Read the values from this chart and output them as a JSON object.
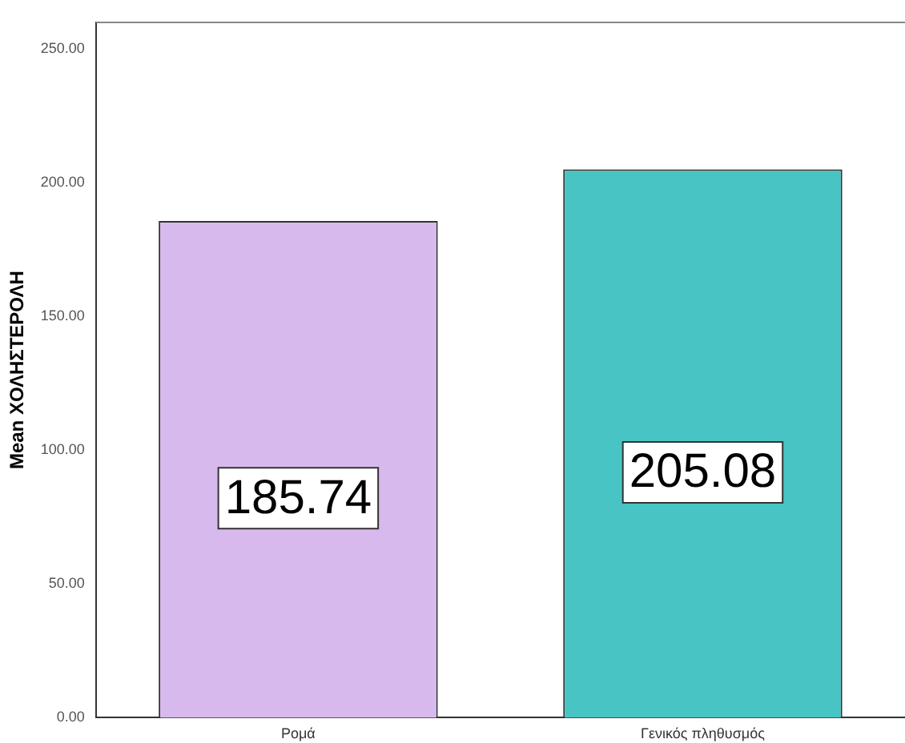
{
  "chart_data": {
    "type": "bar",
    "ylabel": "Mean ΧΟΛΗΣΤΕΡΟΛΗ",
    "categories": [
      "Ρομά",
      "Γενικός πληθυσμός"
    ],
    "values": [
      185.74,
      205.08
    ],
    "colors": [
      "#d8b9ee",
      "#47c4c3"
    ],
    "ylim": [
      0,
      260
    ],
    "yticks": [
      {
        "value": 0,
        "label": "0.00"
      },
      {
        "value": 50,
        "label": "50.00"
      },
      {
        "value": 100,
        "label": "100.00"
      },
      {
        "value": 150,
        "label": "150.00"
      },
      {
        "value": 200,
        "label": "200.00"
      },
      {
        "value": 250,
        "label": "250.00"
      }
    ],
    "data_labels": true,
    "grid": false,
    "legend": false
  }
}
